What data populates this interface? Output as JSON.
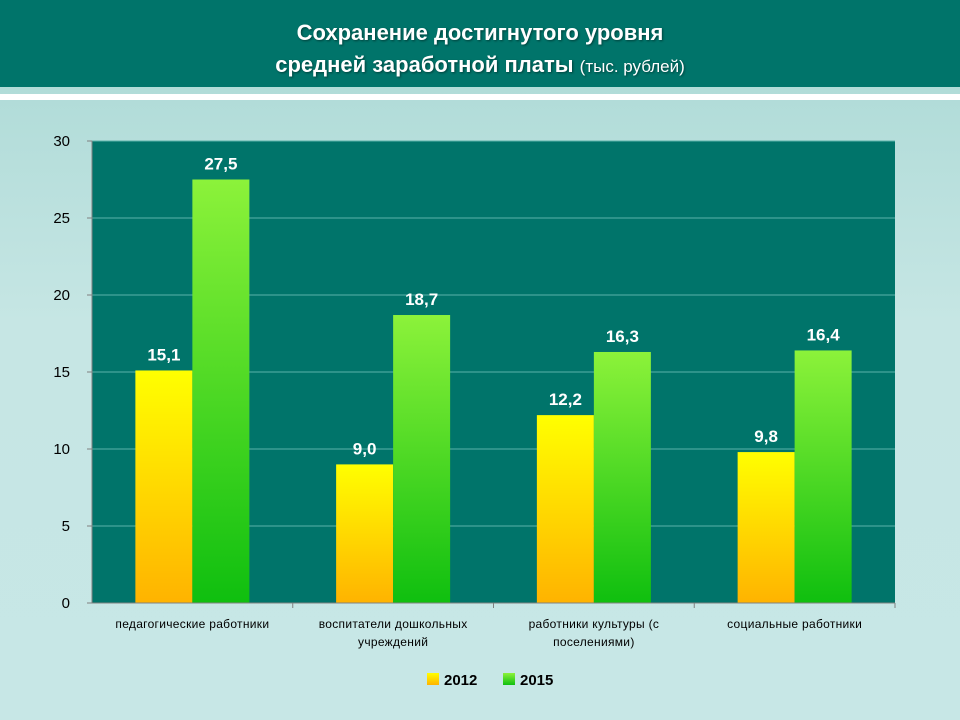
{
  "slide": {
    "title_line1": "Сохранение достигнутого уровня",
    "title_line2": "средней заработной платы",
    "title_unit": "(тыс. рублей)"
  },
  "colors": {
    "header": "#00746a",
    "plot_bg": "#00746a",
    "gridline": "#5ab2aa",
    "series_2012_top": "#ffff00",
    "series_2012_bottom": "#ffb300",
    "series_2015_top": "#8cf23a",
    "series_2015_bottom": "#0fbf0f"
  },
  "chart_data": {
    "type": "bar",
    "categories": [
      [
        "педагогические работники"
      ],
      [
        "воспитатели дошкольных",
        "учреждений"
      ],
      [
        "работники культуры (с",
        "поселениями)"
      ],
      [
        "социальные работники"
      ]
    ],
    "series": [
      {
        "name": "2012",
        "values": [
          15.1,
          9.0,
          12.2,
          9.8
        ],
        "labels": [
          "15,1",
          "9,0",
          "12,2",
          "9,8"
        ]
      },
      {
        "name": "2015",
        "values": [
          27.5,
          18.7,
          16.3,
          16.4
        ],
        "labels": [
          "27,5",
          "18,7",
          "16,3",
          "16,4"
        ]
      }
    ],
    "yticks": [
      0,
      5,
      10,
      15,
      20,
      25,
      30
    ],
    "ylim": [
      0,
      30
    ],
    "grid": true,
    "legend_position": "bottom"
  }
}
